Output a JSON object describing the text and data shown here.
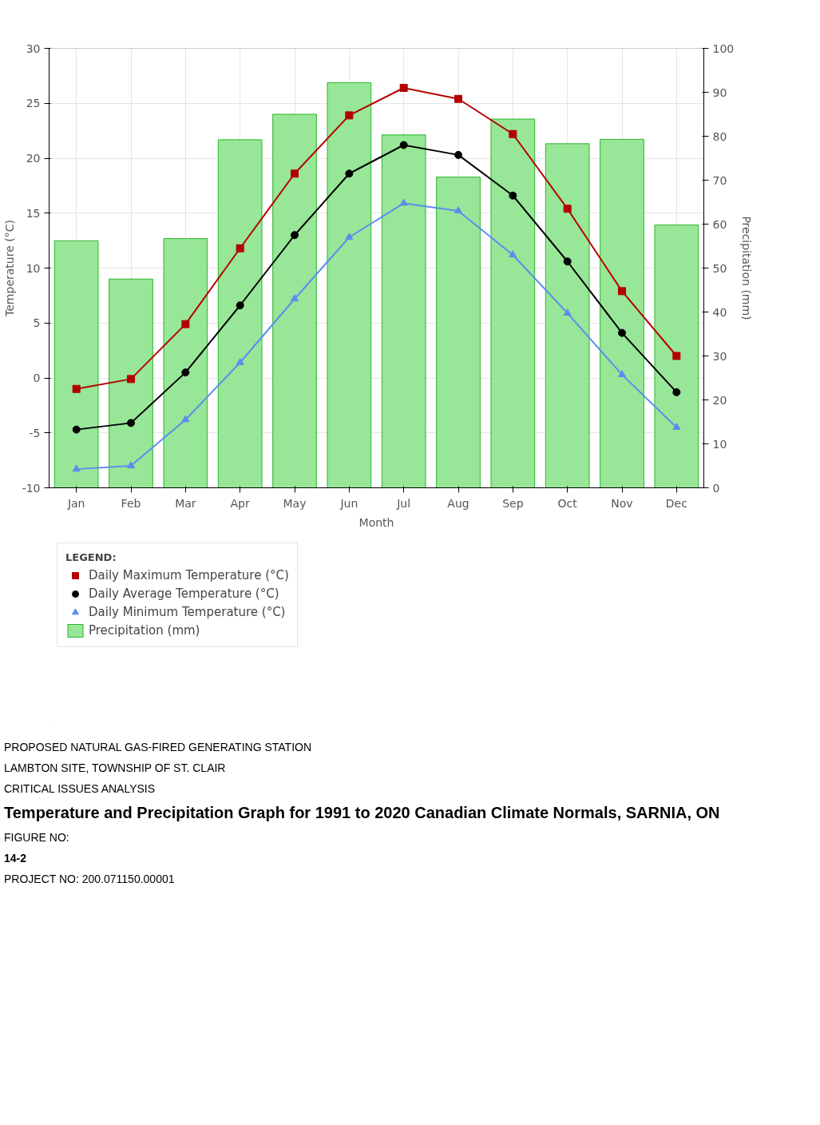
{
  "chart_data": {
    "type": "line",
    "xlabel": "Month",
    "ylabel": "Temperature (°C)",
    "y2label": "Precipitation (mm)",
    "categories": [
      "Jan",
      "Feb",
      "Mar",
      "Apr",
      "May",
      "Jun",
      "Jul",
      "Aug",
      "Sep",
      "Oct",
      "Nov",
      "Dec"
    ],
    "series": [
      {
        "name": "Daily Maximum Temperature (°C)",
        "color": "#b30000",
        "marker": "square",
        "values": [
          -1.0,
          -0.1,
          4.9,
          11.8,
          18.6,
          23.9,
          26.4,
          25.4,
          22.2,
          15.4,
          7.9,
          2.0
        ]
      },
      {
        "name": "Daily Average Temperature (°C)",
        "color": "#000000",
        "marker": "circle",
        "values": [
          -4.7,
          -4.1,
          0.5,
          6.6,
          13.0,
          18.6,
          21.2,
          20.3,
          16.6,
          10.6,
          4.1,
          -1.3
        ]
      },
      {
        "name": "Daily Minimum Temperature (°C)",
        "color": "#5b8def",
        "marker": "triangle",
        "values": [
          -8.3,
          -8.0,
          -3.8,
          1.4,
          7.2,
          12.8,
          15.9,
          15.2,
          11.2,
          5.9,
          0.3,
          -4.5
        ]
      },
      {
        "name": "Precipitation (mm)",
        "type": "bar",
        "axis": "y2",
        "color": "#98e698",
        "values": [
          56.2,
          47.5,
          56.7,
          79.2,
          85.0,
          92.2,
          80.3,
          70.7,
          83.9,
          78.3,
          79.3,
          59.8
        ]
      }
    ],
    "ylim": [
      -10,
      30
    ],
    "yticks": [
      -10,
      -5,
      0,
      5,
      10,
      15,
      20,
      25,
      30
    ],
    "y2lim": [
      0,
      100
    ],
    "y2ticks": [
      0,
      10,
      20,
      30,
      40,
      50,
      60,
      70,
      80,
      90,
      100
    ],
    "grid": true,
    "legend": "bottom",
    "legend_title": "LEGEND:",
    "annotations": [
      "PROPOSED NATURAL GAS-FIRED GENERATING STATION",
      "LAMBTON SITE, TOWNSHIP OF ST. CLAIR",
      "CRITICAL ISSUES ANALYSIS",
      "Temperature and Precipitation Graph for 1991 to 2020 Canadian Climate Normals, SARNIA, ON",
      "FIGURE NO:",
      "14-2",
      "PROJECT NO: 200.071150.00001"
    ]
  }
}
